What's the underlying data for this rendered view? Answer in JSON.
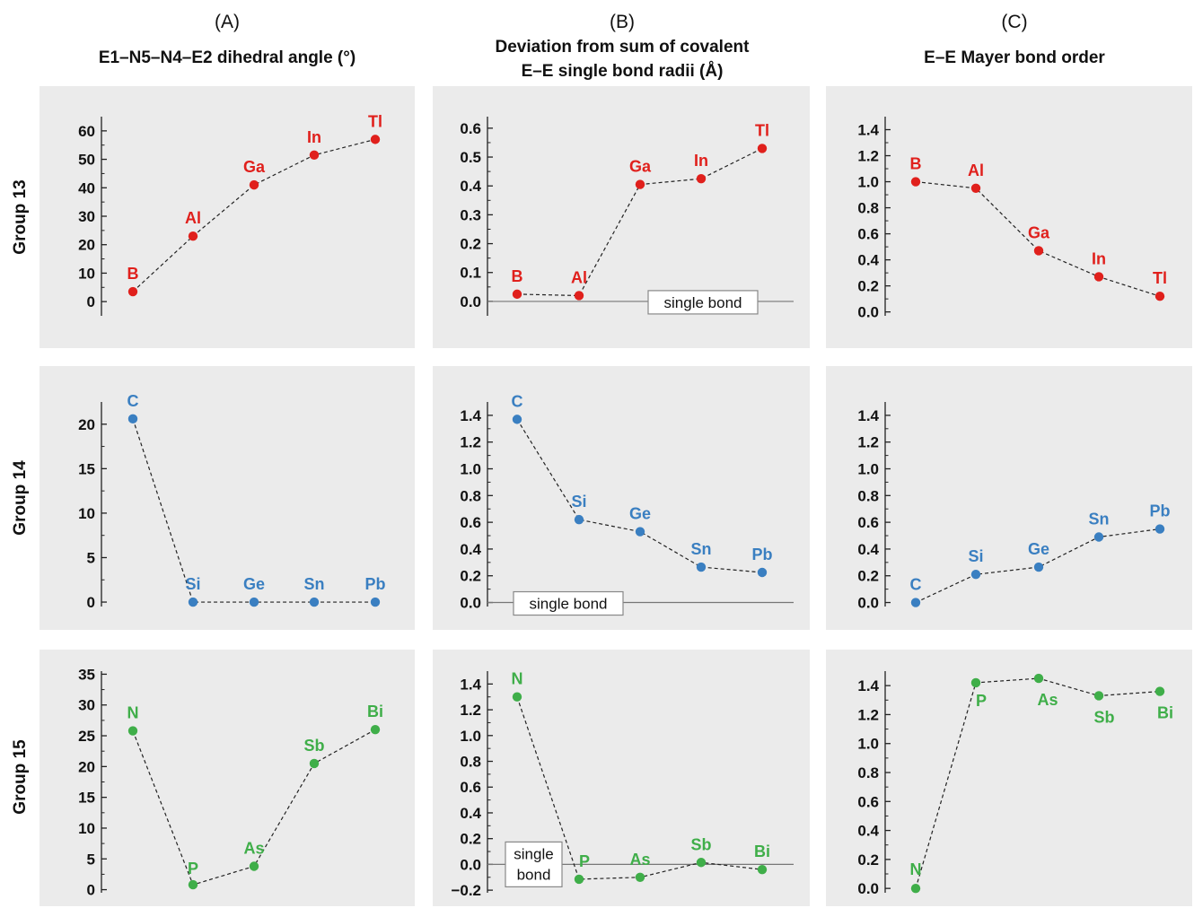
{
  "figure": {
    "columns": [
      {
        "letter": "(A)",
        "title_lines": [
          "E1–N5–N4–E2 dihedral angle (°)"
        ]
      },
      {
        "letter": "(B)",
        "title_lines": [
          "Deviation from sum of covalent",
          "E–E single bond radii (Å)"
        ]
      },
      {
        "letter": "(C)",
        "title_lines": [
          "E–E Mayer bond order"
        ]
      }
    ],
    "rows": [
      {
        "label": "Group 13",
        "color": "#e0201c"
      },
      {
        "label": "Group 14",
        "color": "#3a7fc1"
      },
      {
        "label": "Group 15",
        "color": "#3fae49"
      }
    ],
    "panel_background": "#ebebeb"
  },
  "chart_data": [
    {
      "type": "line",
      "panel": "A-13",
      "categories": [
        "B",
        "Al",
        "Ga",
        "In",
        "Tl"
      ],
      "values": [
        3.5,
        23,
        41,
        51.5,
        57
      ],
      "ylim": [
        -5,
        65
      ],
      "ticks": [
        "0",
        "10",
        "20",
        "30",
        "40",
        "50",
        "60"
      ],
      "line_style": "dashed"
    },
    {
      "type": "line",
      "panel": "B-13",
      "categories": [
        "B",
        "Al",
        "Ga",
        "In",
        "Tl"
      ],
      "values": [
        0.025,
        0.02,
        0.405,
        0.425,
        0.53
      ],
      "ylim": [
        -0.05,
        0.64
      ],
      "ticks": [
        "0.0",
        "0.1",
        "0.2",
        "0.3",
        "0.4",
        "0.5",
        "0.6"
      ],
      "line_style": "dashed",
      "reference_line": {
        "y": 0,
        "label_lines": [
          "single bond"
        ]
      }
    },
    {
      "type": "line",
      "panel": "C-13",
      "categories": [
        "B",
        "Al",
        "Ga",
        "In",
        "Tl"
      ],
      "values": [
        1.0,
        0.95,
        0.47,
        0.27,
        0.12
      ],
      "ylim": [
        -0.03,
        1.5
      ],
      "ticks": [
        "0.0",
        "0.2",
        "0.4",
        "0.6",
        "0.8",
        "1.0",
        "1.2",
        "1.4"
      ],
      "line_style": "dashed"
    },
    {
      "type": "line",
      "panel": "A-14",
      "categories": [
        "C",
        "Si",
        "Ge",
        "Sn",
        "Pb"
      ],
      "values": [
        20.6,
        0,
        0,
        0,
        0
      ],
      "ylim": [
        -0.5,
        22.5
      ],
      "ticks": [
        "0",
        "5",
        "10",
        "15",
        "20"
      ],
      "line_style": "dashed"
    },
    {
      "type": "line",
      "panel": "B-14",
      "categories": [
        "C",
        "Si",
        "Ge",
        "Sn",
        "Pb"
      ],
      "values": [
        1.37,
        0.62,
        0.53,
        0.265,
        0.225
      ],
      "ylim": [
        -0.03,
        1.5
      ],
      "ticks": [
        "0.0",
        "0.2",
        "0.4",
        "0.6",
        "0.8",
        "1.0",
        "1.2",
        "1.4"
      ],
      "line_style": "dashed",
      "reference_line": {
        "y": 0,
        "label_lines": [
          "single bond"
        ]
      }
    },
    {
      "type": "line",
      "panel": "C-14",
      "categories": [
        "C",
        "Si",
        "Ge",
        "Sn",
        "Pb"
      ],
      "values": [
        0,
        0.21,
        0.265,
        0.49,
        0.55
      ],
      "ylim": [
        -0.03,
        1.5
      ],
      "ticks": [
        "0.0",
        "0.2",
        "0.4",
        "0.6",
        "0.8",
        "1.0",
        "1.2",
        "1.4"
      ],
      "line_style": "dashed"
    },
    {
      "type": "line",
      "panel": "A-15",
      "categories": [
        "N",
        "P",
        "As",
        "Sb",
        "Bi"
      ],
      "values": [
        25.8,
        0.8,
        3.8,
        20.5,
        26
      ],
      "ylim": [
        -0.5,
        35.5
      ],
      "ticks": [
        "0",
        "5",
        "10",
        "15",
        "20",
        "25",
        "30",
        "35"
      ],
      "line_style": "dashed"
    },
    {
      "type": "line",
      "panel": "B-15",
      "categories": [
        "N",
        "P",
        "As",
        "Sb",
        "Bi"
      ],
      "values": [
        1.3,
        -0.115,
        -0.1,
        0.015,
        -0.04
      ],
      "ylim": [
        -0.22,
        1.5
      ],
      "ticks": [
        "−0.2",
        "0.0",
        "0.2",
        "0.4",
        "0.6",
        "0.8",
        "1.0",
        "1.2",
        "1.4"
      ],
      "line_style": "dashed",
      "reference_line": {
        "y": 0,
        "label_lines": [
          "single",
          "bond"
        ]
      }
    },
    {
      "type": "line",
      "panel": "C-15",
      "categories": [
        "N",
        "P",
        "As",
        "Sb",
        "Bi"
      ],
      "values": [
        0,
        1.42,
        1.45,
        1.33,
        1.36
      ],
      "ylim": [
        -0.03,
        1.5
      ],
      "ticks": [
        "0.0",
        "0.2",
        "0.4",
        "0.6",
        "0.8",
        "1.0",
        "1.2",
        "1.4"
      ],
      "line_style": "dashed"
    }
  ]
}
